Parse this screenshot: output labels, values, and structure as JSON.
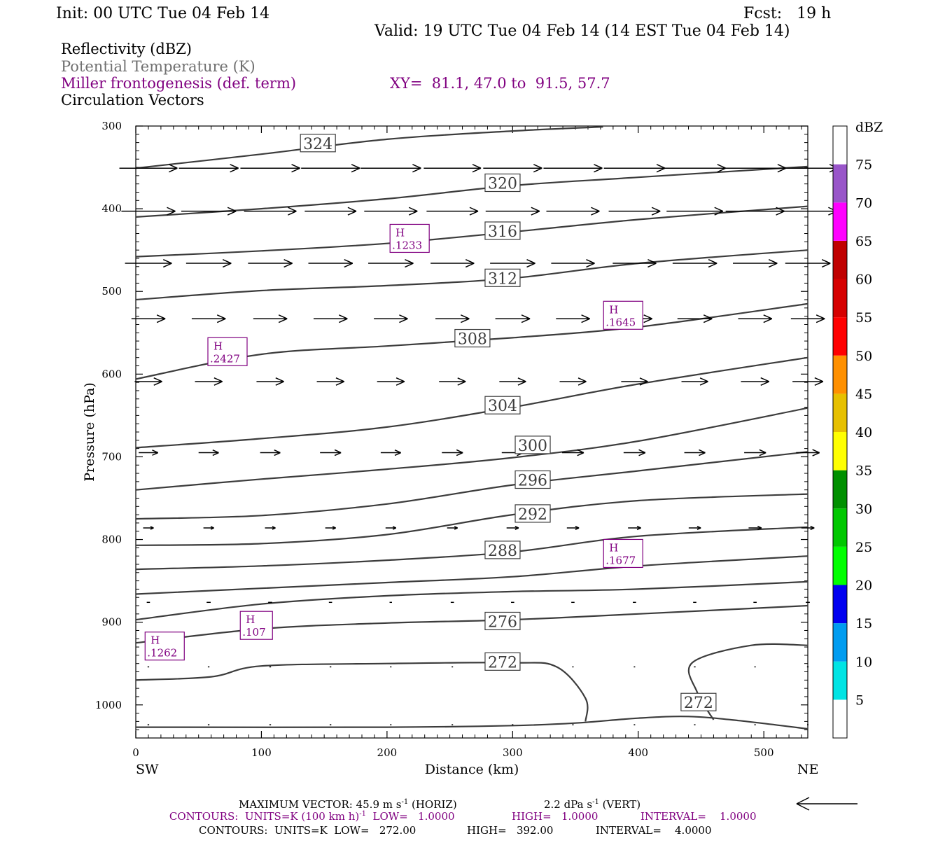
{
  "header": {
    "init": "Init: 00 UTC Tue 04 Feb 14",
    "fcst": "Fcst:   19 h",
    "valid": "Valid: 19 UTC Tue 04 Feb 14 (14 EST Tue 04 Feb 14)"
  },
  "fields": {
    "reflectivity": "Reflectivity (dBZ)",
    "theta": "Potential Temperature (K)",
    "miller": "Miller frontogenesis (def. term)",
    "xy": "XY=  81.1, 47.0 to  91.5, 57.7",
    "circulation": "Circulation Vectors"
  },
  "colors": {
    "purple": "#800080",
    "theta": "#3c3c3c",
    "vector": "#000000"
  },
  "footer": {
    "max_vector": "MAXIMUM VECTOR:  45.9 m s",
    "max_vector_exp": "-1",
    "horiz": " (HORIZ)",
    "vert_val": "2.2 dPa s",
    "vert_exp": "-1",
    "vert": " (VERT)",
    "contours1_a": "CONTOURS:  UNITS=K (100 km h)",
    "contours1_exp": "-1",
    "contours1_b": "  LOW=   1.0000",
    "contours1_high": "HIGH=   1.0000",
    "contours1_int": "INTERVAL=    1.0000",
    "contours2_a": "CONTOURS:  UNITS=K  LOW=   272.00",
    "contours2_high": "HIGH=   392.00",
    "contours2_int": "INTERVAL=    4.0000"
  },
  "chart_data": {
    "type": "line",
    "xlabel": "Distance (km)",
    "ylabel": "Pressure (hPa)",
    "xlim": [
      0,
      535
    ],
    "ylim": [
      300,
      1040
    ],
    "x_ticks": [
      0,
      100,
      200,
      300,
      400,
      500
    ],
    "y_ticks": [
      300,
      400,
      500,
      600,
      700,
      800,
      900,
      1000
    ],
    "x_end_labels": {
      "left": "SW",
      "right": "NE"
    },
    "colorbar": {
      "unit": "dBZ",
      "levels": [
        5,
        10,
        15,
        20,
        25,
        30,
        35,
        40,
        45,
        50,
        55,
        60,
        65,
        70,
        75
      ],
      "colors": [
        "#ffffff",
        "#00e4e4",
        "#009cf0",
        "#0000f0",
        "#00ff00",
        "#00c800",
        "#009000",
        "#ffff00",
        "#e7c000",
        "#ff9000",
        "#ff0000",
        "#d60000",
        "#c00000",
        "#ff00ff",
        "#9955c9",
        "#ffffff"
      ]
    },
    "theta_contours": [
      {
        "label": "324",
        "label_x": 145,
        "label_p": 321,
        "points": [
          [
            0,
            351
          ],
          [
            100,
            334
          ],
          [
            200,
            316
          ],
          [
            300,
            306
          ],
          [
            372,
            301
          ]
        ]
      },
      {
        "label": "320",
        "label_x": 292,
        "label_p": 369,
        "points": [
          [
            0,
            410
          ],
          [
            100,
            400
          ],
          [
            200,
            388
          ],
          [
            300,
            372
          ],
          [
            400,
            362
          ],
          [
            535,
            349
          ]
        ]
      },
      {
        "label": "316",
        "label_x": 292,
        "label_p": 427,
        "points": [
          [
            0,
            458
          ],
          [
            100,
            451
          ],
          [
            200,
            442
          ],
          [
            300,
            428
          ],
          [
            400,
            413
          ],
          [
            535,
            397
          ]
        ]
      },
      {
        "label": "312",
        "label_x": 292,
        "label_p": 484,
        "points": [
          [
            0,
            510
          ],
          [
            100,
            499
          ],
          [
            200,
            493
          ],
          [
            300,
            484
          ],
          [
            400,
            466
          ],
          [
            535,
            450
          ]
        ]
      },
      {
        "label": "308",
        "label_x": 268,
        "label_p": 557,
        "points": [
          [
            0,
            606
          ],
          [
            100,
            576
          ],
          [
            200,
            566
          ],
          [
            300,
            556
          ],
          [
            400,
            543
          ],
          [
            535,
            515
          ]
        ]
      },
      {
        "label": "304",
        "label_x": 292,
        "label_p": 638,
        "points": [
          [
            0,
            689
          ],
          [
            100,
            678
          ],
          [
            200,
            664
          ],
          [
            300,
            640
          ],
          [
            400,
            612
          ],
          [
            535,
            580
          ]
        ]
      },
      {
        "label": "300",
        "label_x": 316,
        "label_p": 686,
        "points": [
          [
            0,
            740
          ],
          [
            100,
            727
          ],
          [
            200,
            715
          ],
          [
            300,
            701
          ],
          [
            400,
            681
          ],
          [
            535,
            641
          ]
        ]
      },
      {
        "label": "296",
        "label_x": 316,
        "label_p": 728,
        "points": [
          [
            0,
            775
          ],
          [
            100,
            771
          ],
          [
            200,
            757
          ],
          [
            300,
            734
          ],
          [
            400,
            717
          ],
          [
            535,
            694
          ]
        ]
      },
      {
        "label": "292",
        "label_x": 316,
        "label_p": 769,
        "points": [
          [
            0,
            807
          ],
          [
            100,
            805
          ],
          [
            200,
            794
          ],
          [
            300,
            770
          ],
          [
            400,
            753
          ],
          [
            535,
            745
          ]
        ]
      },
      {
        "label": "288",
        "label_x": 292,
        "label_p": 813,
        "points": [
          [
            0,
            836
          ],
          [
            100,
            832
          ],
          [
            200,
            825
          ],
          [
            300,
            815
          ],
          [
            400,
            796
          ],
          [
            535,
            785
          ]
        ]
      },
      {
        "label": "",
        "label_x": 0,
        "label_p": 0,
        "points": [
          [
            0,
            866
          ],
          [
            100,
            859
          ],
          [
            200,
            852
          ],
          [
            300,
            845
          ],
          [
            400,
            832
          ],
          [
            535,
            820
          ]
        ]
      },
      {
        "label": "",
        "label_x": 0,
        "label_p": 0,
        "points": [
          [
            0,
            897
          ],
          [
            100,
            878
          ],
          [
            200,
            868
          ],
          [
            300,
            863
          ],
          [
            400,
            860
          ],
          [
            535,
            851
          ]
        ]
      },
      {
        "label": "276",
        "label_x": 292,
        "label_p": 899,
        "points": [
          [
            0,
            925
          ],
          [
            100,
            908
          ],
          [
            200,
            901
          ],
          [
            300,
            897
          ],
          [
            400,
            890
          ],
          [
            535,
            880
          ]
        ]
      },
      {
        "label": "272",
        "label_x": 292,
        "label_p": 948,
        "points": [
          [
            0,
            970
          ],
          [
            60,
            966
          ],
          [
            100,
            953
          ],
          [
            200,
            950
          ],
          [
            300,
            949
          ],
          [
            335,
            954
          ],
          [
            358,
            992
          ],
          [
            358,
            1020
          ]
        ]
      },
      {
        "label": "272",
        "label_x": 448,
        "label_p": 997,
        "points": [
          [
            535,
            928
          ],
          [
            490,
            928
          ],
          [
            443,
            949
          ],
          [
            447,
            985
          ],
          [
            460,
            1018
          ]
        ]
      },
      {
        "label": "",
        "label_x": 0,
        "label_p": 0,
        "points": [
          [
            0,
            1027
          ],
          [
            200,
            1027
          ],
          [
            300,
            1025
          ],
          [
            350,
            1022
          ],
          [
            400,
            1016
          ],
          [
            440,
            1014
          ],
          [
            480,
            1019
          ],
          [
            535,
            1029
          ]
        ]
      }
    ],
    "frontogenesis_highs": [
      {
        "label": "H",
        "value": ".1233",
        "x": 218,
        "p": 435
      },
      {
        "label": "H",
        "value": ".1645",
        "x": 388,
        "p": 528
      },
      {
        "label": "H",
        "value": ".2427",
        "x": 73,
        "p": 572
      },
      {
        "label": "H",
        "value": ".1677",
        "x": 388,
        "p": 816
      },
      {
        "label": "H",
        "value": ".107",
        "x": 96,
        "p": 903
      },
      {
        "label": "H",
        "value": ".1262",
        "x": 23,
        "p": 928
      }
    ],
    "vector_rows": [
      {
        "p": 351,
        "u": [
          0.72,
          0.74,
          0.74,
          0.73,
          0.75,
          0.71,
          0.73,
          0.73,
          0.76,
          0.77,
          0.77,
          0.75
        ]
      },
      {
        "p": 403,
        "u": [
          0.67,
          0.68,
          0.65,
          0.64,
          0.66,
          0.64,
          0.67,
          0.66,
          0.64,
          0.7,
          0.73,
          0.72
        ]
      },
      {
        "p": 466,
        "u": [
          0.58,
          0.56,
          0.55,
          0.55,
          0.56,
          0.54,
          0.56,
          0.54,
          0.54,
          0.55,
          0.55,
          0.56
        ]
      },
      {
        "p": 533,
        "u": [
          0.42,
          0.42,
          0.42,
          0.42,
          0.42,
          0.42,
          0.43,
          0.42,
          0.44,
          0.43,
          0.42,
          0.42
        ]
      },
      {
        "p": 609,
        "u": [
          0.34,
          0.34,
          0.34,
          0.34,
          0.34,
          0.33,
          0.33,
          0.33,
          0.33,
          0.33,
          0.35,
          0.38
        ]
      },
      {
        "p": 695,
        "u": [
          0.24,
          0.25,
          0.25,
          0.26,
          0.25,
          0.26,
          0.27,
          0.27,
          0.27,
          0.26,
          0.27,
          0.29
        ]
      },
      {
        "p": 786,
        "u": [
          0.13,
          0.13,
          0.13,
          0.13,
          0.13,
          0.13,
          0.15,
          0.15,
          0.16,
          0.15,
          0.16,
          0.16
        ]
      },
      {
        "p": 876,
        "u": [
          0.04,
          0.05,
          0.05,
          0.04,
          0.03,
          0.04,
          0.04,
          0.04,
          0.04,
          0.04,
          0.04,
          0.05
        ]
      },
      {
        "p": 954,
        "u": [
          0.02,
          0.02,
          0.02,
          0.02,
          0.01,
          0.01,
          0.01,
          0.01,
          0.01,
          0.02,
          0.01,
          0.02
        ]
      },
      {
        "p": 1024,
        "u": [
          0.02,
          0.02,
          0.02,
          0.02,
          0.01,
          0.01,
          0.01,
          0.01,
          0.01,
          0.01,
          0.01,
          0.01
        ]
      }
    ],
    "vector_columns_x": [
      10,
      58,
      107,
      155,
      203,
      252,
      300,
      348,
      397,
      445,
      493,
      535
    ]
  }
}
